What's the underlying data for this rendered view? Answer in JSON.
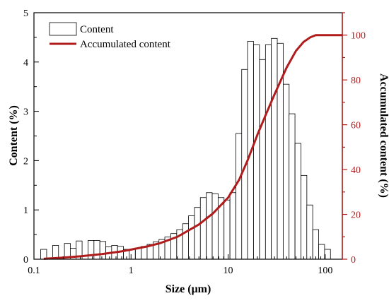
{
  "chart_data": {
    "type": "bar",
    "title": "",
    "xlabel": "Size (μm)",
    "ylabel": "Content (%)",
    "y2label": "Accumulated content (%)",
    "xscale": "log",
    "xlim": [
      0.1,
      150
    ],
    "ylim": [
      0,
      5
    ],
    "y2lim": [
      0,
      110
    ],
    "xticks": [
      "0.1",
      "1",
      "10",
      "100"
    ],
    "yticks": [
      "0",
      "1",
      "2",
      "3",
      "4",
      "5"
    ],
    "y2ticks": [
      "0",
      "20",
      "40",
      "60",
      "80",
      "100"
    ],
    "legend_position": "top-left",
    "colors": {
      "histogram": "#000000",
      "cumulative": "#b01c1c",
      "right_axis": "#b01c1c"
    },
    "series": [
      {
        "name": "Content",
        "type": "histogram",
        "x": [
          0.126,
          0.145,
          0.167,
          0.192,
          0.221,
          0.254,
          0.292,
          0.336,
          0.387,
          0.445,
          0.512,
          0.589,
          0.677,
          0.779,
          0.897,
          1.03,
          1.19,
          1.37,
          1.57,
          1.81,
          2.08,
          2.39,
          2.75,
          3.17,
          3.65,
          4.19,
          4.83,
          5.55,
          6.39,
          7.35,
          8.46,
          9.73,
          11.2,
          12.9,
          14.8,
          17.0,
          19.6,
          22.6,
          26.0,
          29.9,
          34.4,
          39.6,
          45.5,
          52.4,
          60.3,
          69.3,
          79.8,
          91.8,
          105.6
        ],
        "values": [
          0.2,
          0.0,
          0.28,
          0.0,
          0.32,
          0.22,
          0.37,
          0.0,
          0.38,
          0.38,
          0.36,
          0.25,
          0.28,
          0.26,
          0.2,
          0.2,
          0.23,
          0.26,
          0.3,
          0.35,
          0.4,
          0.45,
          0.52,
          0.6,
          0.72,
          0.88,
          1.05,
          1.25,
          1.35,
          1.33,
          1.25,
          1.2,
          1.35,
          2.55,
          3.85,
          4.42,
          4.35,
          4.05,
          4.35,
          4.48,
          4.38,
          3.55,
          2.95,
          2.35,
          1.7,
          1.1,
          0.6,
          0.3,
          0.2
        ]
      },
      {
        "name": "Accumulated content",
        "type": "line",
        "axis": "right",
        "x": [
          0.126,
          0.2,
          0.3,
          0.5,
          0.8,
          1,
          1.5,
          2,
          3,
          5,
          7,
          10,
          13,
          16,
          20,
          25,
          30,
          40,
          50,
          60,
          70,
          80,
          100,
          150
        ],
        "values": [
          0.2,
          0.7,
          1.3,
          2.3,
          3.5,
          4.3,
          5.8,
          7.2,
          10,
          15.5,
          20.5,
          27.5,
          35.5,
          44.5,
          55.5,
          65.5,
          73.5,
          85.5,
          93,
          97,
          99,
          100,
          100,
          100
        ]
      }
    ]
  }
}
